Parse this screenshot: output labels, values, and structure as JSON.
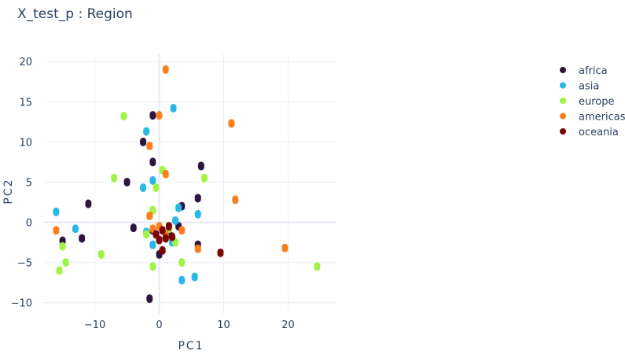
{
  "chart_data": {
    "type": "scatter",
    "title": "X_test_p : Region",
    "xlabel": "PC1",
    "ylabel": "PC2",
    "xlim": [
      -18,
      27.5
    ],
    "ylim": [
      -11.5,
      21
    ],
    "xticks": [
      -10,
      0,
      10,
      20
    ],
    "yticks": [
      -10,
      -5,
      0,
      5,
      10,
      15,
      20
    ],
    "grid": true,
    "legend_position": "top-right",
    "series": [
      {
        "name": "africa",
        "color": "#2d1540",
        "points": [
          [
            -1.5,
            -9.5
          ],
          [
            -1,
            13.3
          ],
          [
            -2.5,
            10
          ],
          [
            -1,
            7.5
          ],
          [
            -5,
            5
          ],
          [
            -11,
            2.3
          ],
          [
            -12,
            -2
          ],
          [
            -15,
            -2.3
          ],
          [
            -4,
            -0.7
          ],
          [
            6.5,
            7
          ],
          [
            6,
            3
          ],
          [
            3.5,
            2
          ],
          [
            6,
            -2.8
          ],
          [
            0,
            -4
          ],
          [
            -1,
            -1
          ],
          [
            1.5,
            -1.5
          ],
          [
            3,
            -0.5
          ]
        ]
      },
      {
        "name": "asia",
        "color": "#29b6e6",
        "points": [
          [
            -16,
            1.3
          ],
          [
            -13,
            -0.8
          ],
          [
            2.2,
            14.2
          ],
          [
            -2,
            11.3
          ],
          [
            -2.5,
            4.3
          ],
          [
            -1,
            5.2
          ],
          [
            3,
            1.8
          ],
          [
            6,
            1
          ],
          [
            2.5,
            0.2
          ],
          [
            -2,
            -1.2
          ],
          [
            5.5,
            -6.8
          ],
          [
            3.5,
            -7.2
          ],
          [
            2,
            -2.5
          ],
          [
            -1,
            -2.8
          ],
          [
            1,
            -1.8
          ]
        ]
      },
      {
        "name": "europe",
        "color": "#a1f243",
        "points": [
          [
            -5.5,
            13.2
          ],
          [
            -7,
            5.5
          ],
          [
            7,
            5.5
          ],
          [
            -0.5,
            4.3
          ],
          [
            -15,
            -3
          ],
          [
            -15.5,
            -6
          ],
          [
            -14.5,
            -5
          ],
          [
            -9,
            -4
          ],
          [
            -1,
            -5.5
          ],
          [
            3.5,
            -5
          ],
          [
            24.5,
            -5.5
          ],
          [
            2.5,
            -2.5
          ],
          [
            -2,
            -1.5
          ],
          [
            -1,
            1.5
          ],
          [
            1.5,
            -0.8
          ],
          [
            0.5,
            6.5
          ]
        ]
      },
      {
        "name": "americas",
        "color": "#f77f1e",
        "points": [
          [
            1,
            19
          ],
          [
            11.2,
            12.3
          ],
          [
            -1.5,
            9.5
          ],
          [
            0,
            13.3
          ],
          [
            1,
            6
          ],
          [
            11.8,
            2.8
          ],
          [
            19.5,
            -3.2
          ],
          [
            -16,
            -1
          ],
          [
            6,
            -3.3
          ],
          [
            3.5,
            -1
          ],
          [
            -1.5,
            0.8
          ],
          [
            0,
            -0.5
          ],
          [
            1,
            -1.5
          ],
          [
            -1,
            -0.8
          ]
        ]
      },
      {
        "name": "oceania",
        "color": "#7a0403",
        "points": [
          [
            9.5,
            -3.8
          ],
          [
            0.5,
            -1
          ],
          [
            1,
            -2
          ],
          [
            -0.5,
            -1.5
          ],
          [
            0.5,
            -3.5
          ],
          [
            1.5,
            -0.5
          ],
          [
            0,
            -2.2
          ],
          [
            2,
            -1.8
          ]
        ]
      }
    ]
  }
}
